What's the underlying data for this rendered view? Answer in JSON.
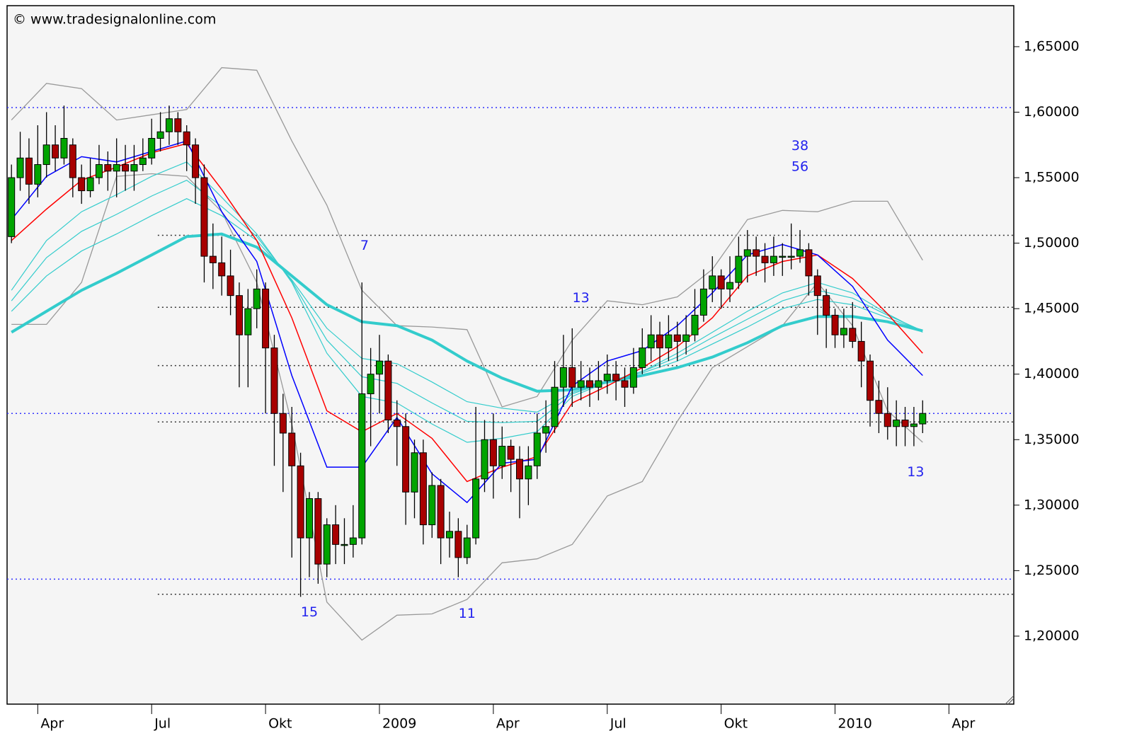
{
  "chart_data": {
    "type": "candlestick",
    "watermark": "© www.tradesignalonline.com",
    "xlim": [
      -3.5,
      111.4
    ],
    "xticks": [
      {
        "value": 0,
        "label": "Apr"
      },
      {
        "value": 13,
        "label": "Jul"
      },
      {
        "value": 26,
        "label": "Okt"
      },
      {
        "value": 39,
        "label": "2009"
      },
      {
        "value": 52,
        "label": "Apr"
      },
      {
        "value": 65,
        "label": "Jul"
      },
      {
        "value": 78,
        "label": "Okt"
      },
      {
        "value": 91,
        "label": "2010"
      },
      {
        "value": 104,
        "label": "Apr"
      }
    ],
    "ylim": [
      1.1481,
      1.6813
    ],
    "yticks": [
      {
        "value": 1.2,
        "label": "1,20000"
      },
      {
        "value": 1.25,
        "label": "1,25000"
      },
      {
        "value": 1.3,
        "label": "1,30000"
      },
      {
        "value": 1.35,
        "label": "1,35000"
      },
      {
        "value": 1.4,
        "label": "1,40000"
      },
      {
        "value": 1.45,
        "label": "1,45000"
      },
      {
        "value": 1.5,
        "label": "1,50000"
      },
      {
        "value": 1.55,
        "label": "1,55000"
      },
      {
        "value": 1.6,
        "label": "1,60000"
      },
      {
        "value": 1.65,
        "label": "1,65000"
      }
    ],
    "up_color": "#00a400",
    "down_color": "#a80000",
    "x": [
      -3,
      -2,
      -1,
      0,
      1,
      2,
      3,
      4,
      5,
      6,
      7,
      8,
      9,
      10,
      11,
      12,
      13,
      14,
      15,
      16,
      17,
      18,
      19,
      20,
      21,
      22,
      23,
      24,
      25,
      26,
      27,
      28,
      29,
      30,
      31,
      32,
      33,
      34,
      35,
      36,
      37,
      38,
      39,
      40,
      41,
      42,
      43,
      44,
      45,
      46,
      47,
      48,
      49,
      50,
      51,
      52,
      53,
      54,
      55,
      56,
      57,
      58,
      59,
      60,
      61,
      62,
      63,
      64,
      65,
      66,
      67,
      68,
      69,
      70,
      71,
      72,
      73,
      74,
      75,
      76,
      77,
      78,
      79,
      80,
      81,
      82,
      83,
      84,
      85,
      86,
      87,
      88,
      89,
      90,
      91,
      92,
      93,
      94,
      95,
      96,
      97,
      98,
      99,
      100,
      101
    ],
    "open": [
      1.505,
      1.55,
      1.565,
      1.545,
      1.56,
      1.575,
      1.565,
      1.575,
      1.55,
      1.54,
      1.55,
      1.56,
      1.555,
      1.56,
      1.555,
      1.56,
      1.565,
      1.58,
      1.585,
      1.595,
      1.585,
      1.575,
      1.55,
      1.49,
      1.485,
      1.475,
      1.46,
      1.43,
      1.45,
      1.465,
      1.42,
      1.37,
      1.355,
      1.33,
      1.275,
      1.305,
      1.255,
      1.285,
      1.27,
      1.27,
      1.275,
      1.385,
      1.4,
      1.41,
      1.365,
      1.36,
      1.31,
      1.34,
      1.285,
      1.315,
      1.275,
      1.28,
      1.26,
      1.275,
      1.32,
      1.35,
      1.33,
      1.345,
      1.335,
      1.32,
      1.33,
      1.355,
      1.36,
      1.39,
      1.405,
      1.39,
      1.395,
      1.39,
      1.395,
      1.4,
      1.395,
      1.39,
      1.405,
      1.42,
      1.43,
      1.42,
      1.43,
      1.425,
      1.43,
      1.445,
      1.465,
      1.475,
      1.465,
      1.47,
      1.49,
      1.495,
      1.49,
      1.485,
      1.49,
      1.49,
      1.49,
      1.495,
      1.475,
      1.46,
      1.445,
      1.43,
      1.435,
      1.425,
      1.41,
      1.38,
      1.37,
      1.36,
      1.365,
      1.36,
      1.362
    ],
    "high": [
      1.56,
      1.585,
      1.58,
      1.59,
      1.6,
      1.59,
      1.605,
      1.58,
      1.56,
      1.565,
      1.575,
      1.57,
      1.58,
      1.575,
      1.575,
      1.58,
      1.595,
      1.6,
      1.605,
      1.6,
      1.59,
      1.58,
      1.56,
      1.515,
      1.505,
      1.495,
      1.47,
      1.465,
      1.48,
      1.47,
      1.43,
      1.385,
      1.375,
      1.34,
      1.31,
      1.31,
      1.29,
      1.3,
      1.29,
      1.3,
      1.47,
      1.42,
      1.43,
      1.415,
      1.38,
      1.37,
      1.35,
      1.35,
      1.325,
      1.32,
      1.295,
      1.29,
      1.285,
      1.375,
      1.365,
      1.37,
      1.36,
      1.35,
      1.345,
      1.345,
      1.37,
      1.38,
      1.41,
      1.43,
      1.435,
      1.41,
      1.405,
      1.41,
      1.415,
      1.41,
      1.405,
      1.42,
      1.435,
      1.445,
      1.44,
      1.445,
      1.44,
      1.445,
      1.465,
      1.48,
      1.49,
      1.48,
      1.49,
      1.505,
      1.51,
      1.505,
      1.5,
      1.505,
      1.5,
      1.515,
      1.51,
      1.5,
      1.48,
      1.465,
      1.45,
      1.45,
      1.455,
      1.44,
      1.415,
      1.395,
      1.39,
      1.38,
      1.375,
      1.375,
      1.38
    ],
    "low": [
      1.5,
      1.54,
      1.53,
      1.535,
      1.55,
      1.555,
      1.56,
      1.535,
      1.53,
      1.535,
      1.545,
      1.54,
      1.535,
      1.54,
      1.54,
      1.555,
      1.56,
      1.57,
      1.575,
      1.575,
      1.555,
      1.53,
      1.47,
      1.465,
      1.46,
      1.445,
      1.39,
      1.39,
      1.435,
      1.37,
      1.33,
      1.31,
      1.26,
      1.23,
      1.245,
      1.24,
      1.245,
      1.255,
      1.255,
      1.26,
      1.27,
      1.345,
      1.37,
      1.355,
      1.33,
      1.285,
      1.29,
      1.27,
      1.275,
      1.255,
      1.26,
      1.245,
      1.255,
      1.27,
      1.31,
      1.305,
      1.32,
      1.31,
      1.29,
      1.3,
      1.32,
      1.34,
      1.355,
      1.375,
      1.375,
      1.38,
      1.375,
      1.38,
      1.385,
      1.38,
      1.375,
      1.385,
      1.4,
      1.41,
      1.405,
      1.41,
      1.41,
      1.415,
      1.425,
      1.44,
      1.455,
      1.45,
      1.455,
      1.465,
      1.47,
      1.475,
      1.47,
      1.475,
      1.475,
      1.48,
      1.485,
      1.46,
      1.43,
      1.42,
      1.42,
      1.42,
      1.42,
      1.39,
      1.36,
      1.355,
      1.35,
      1.345,
      1.345,
      1.345,
      1.355
    ],
    "close": [
      1.55,
      1.565,
      1.545,
      1.56,
      1.575,
      1.565,
      1.58,
      1.55,
      1.54,
      1.55,
      1.56,
      1.555,
      1.56,
      1.555,
      1.56,
      1.565,
      1.58,
      1.585,
      1.595,
      1.585,
      1.575,
      1.55,
      1.49,
      1.485,
      1.475,
      1.46,
      1.43,
      1.45,
      1.465,
      1.42,
      1.37,
      1.355,
      1.33,
      1.275,
      1.305,
      1.255,
      1.285,
      1.27,
      1.27,
      1.275,
      1.385,
      1.4,
      1.41,
      1.365,
      1.36,
      1.31,
      1.34,
      1.285,
      1.315,
      1.275,
      1.28,
      1.26,
      1.275,
      1.32,
      1.35,
      1.33,
      1.345,
      1.335,
      1.32,
      1.33,
      1.355,
      1.36,
      1.39,
      1.405,
      1.39,
      1.395,
      1.39,
      1.395,
      1.4,
      1.395,
      1.39,
      1.405,
      1.42,
      1.43,
      1.42,
      1.43,
      1.425,
      1.43,
      1.445,
      1.465,
      1.475,
      1.465,
      1.47,
      1.49,
      1.495,
      1.49,
      1.485,
      1.49,
      1.49,
      1.49,
      1.495,
      1.475,
      1.46,
      1.445,
      1.43,
      1.435,
      1.425,
      1.41,
      1.38,
      1.37,
      1.36,
      1.365,
      1.36,
      1.362,
      1.37
    ],
    "line_x": [
      -3,
      1,
      5,
      9,
      13,
      17,
      21,
      25,
      29,
      33,
      37,
      41,
      45,
      49,
      53,
      57,
      61,
      65,
      69,
      73,
      77,
      81,
      85,
      89,
      93,
      97,
      101
    ],
    "lines": [
      {
        "color": "#999999",
        "width": 1.3,
        "values": [
          1.594,
          1.622,
          1.618,
          1.594,
          1.598,
          1.602,
          1.634,
          1.632,
          1.578,
          1.529,
          1.464,
          1.437,
          1.436,
          1.434,
          1.375,
          1.383,
          1.426,
          1.456,
          1.453,
          1.459,
          1.48,
          1.518,
          1.525,
          1.524,
          1.532,
          1.532,
          1.487
        ]
      },
      {
        "color": "#999999",
        "width": 1.3,
        "values": [
          1.438,
          1.438,
          1.47,
          1.551,
          1.553,
          1.551,
          1.524,
          1.47,
          1.362,
          1.226,
          1.197,
          1.216,
          1.217,
          1.228,
          1.256,
          1.259,
          1.27,
          1.307,
          1.318,
          1.364,
          1.405,
          1.421,
          1.437,
          1.47,
          1.437,
          1.372,
          1.348
        ]
      },
      {
        "color": "#33cccc",
        "width": 1.2,
        "values": [
          1.464,
          1.502,
          1.524,
          1.537,
          1.551,
          1.562,
          1.535,
          1.507,
          1.47,
          1.416,
          1.383,
          1.378,
          1.362,
          1.348,
          1.351,
          1.356,
          1.383,
          1.394,
          1.402,
          1.416,
          1.432,
          1.448,
          1.462,
          1.47,
          1.462,
          1.446,
          1.432
        ]
      },
      {
        "color": "#33cccc",
        "width": 1.2,
        "values": [
          1.456,
          1.489,
          1.509,
          1.522,
          1.536,
          1.548,
          1.528,
          1.505,
          1.471,
          1.426,
          1.398,
          1.393,
          1.378,
          1.364,
          1.363,
          1.364,
          1.385,
          1.394,
          1.402,
          1.413,
          1.428,
          1.442,
          1.456,
          1.464,
          1.458,
          1.445,
          1.433
        ]
      },
      {
        "color": "#33cccc",
        "width": 1.2,
        "values": [
          1.448,
          1.475,
          1.494,
          1.507,
          1.521,
          1.534,
          1.521,
          1.502,
          1.472,
          1.435,
          1.412,
          1.408,
          1.394,
          1.379,
          1.374,
          1.371,
          1.386,
          1.394,
          1.401,
          1.41,
          1.423,
          1.436,
          1.45,
          1.457,
          1.453,
          1.443,
          1.433
        ]
      },
      {
        "color": "#33cccc",
        "width": 4,
        "values": [
          1.432,
          1.448,
          1.464,
          1.477,
          1.491,
          1.505,
          1.507,
          1.497,
          1.475,
          1.453,
          1.44,
          1.437,
          1.426,
          1.41,
          1.397,
          1.387,
          1.388,
          1.394,
          1.399,
          1.405,
          1.413,
          1.424,
          1.437,
          1.444,
          1.444,
          1.44,
          1.433
        ]
      },
      {
        "color": "#ff0000",
        "width": 1.5,
        "values": [
          1.502,
          1.526,
          1.548,
          1.558,
          1.569,
          1.576,
          1.541,
          1.502,
          1.443,
          1.372,
          1.356,
          1.37,
          1.351,
          1.318,
          1.329,
          1.337,
          1.378,
          1.391,
          1.405,
          1.421,
          1.443,
          1.475,
          1.486,
          1.491,
          1.473,
          1.446,
          1.416
        ]
      },
      {
        "color": "#0000ff",
        "width": 1.5,
        "values": [
          1.518,
          1.551,
          1.566,
          1.562,
          1.57,
          1.578,
          1.524,
          1.486,
          1.399,
          1.329,
          1.329,
          1.367,
          1.324,
          1.302,
          1.332,
          1.335,
          1.391,
          1.41,
          1.418,
          1.437,
          1.462,
          1.491,
          1.499,
          1.491,
          1.467,
          1.426,
          1.399
        ]
      }
    ],
    "hlines": [
      {
        "value": 1.6035,
        "color": "#3333ff",
        "from": -3.5
      },
      {
        "value": 1.37,
        "color": "#3333ff",
        "from": -3.5
      },
      {
        "value": 1.2435,
        "color": "#3333ff",
        "from": -3.5
      },
      {
        "value": 1.506,
        "color": "#333333",
        "from": 13.7
      },
      {
        "value": 1.451,
        "color": "#333333",
        "from": 13.7
      },
      {
        "value": 1.4065,
        "color": "#333333",
        "from": 13.7
      },
      {
        "value": 1.3635,
        "color": "#333333",
        "from": 13.7
      },
      {
        "value": 1.232,
        "color": "#333333",
        "from": 13.7
      }
    ],
    "annotations": [
      {
        "text": "7",
        "x": 37.3,
        "y": 1.498
      },
      {
        "text": "15",
        "x": 31,
        "y": 1.218
      },
      {
        "text": "11",
        "x": 49,
        "y": 1.217
      },
      {
        "text": "13",
        "x": 62,
        "y": 1.458
      },
      {
        "text": "38",
        "x": 87,
        "y": 1.574
      },
      {
        "text": "56",
        "x": 87,
        "y": 1.558
      },
      {
        "text": "13",
        "x": 100.2,
        "y": 1.325
      }
    ],
    "annotation_color": "#2222ee"
  }
}
